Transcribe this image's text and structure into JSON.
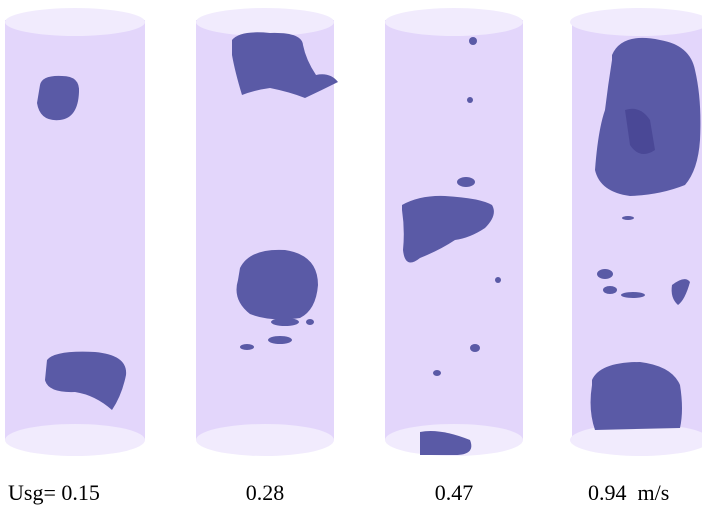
{
  "panels": [
    {
      "label": "Usg= 0.15"
    },
    {
      "label": "0.28"
    },
    {
      "label": "0.47"
    },
    {
      "label": "0.94  m/s"
    }
  ]
}
